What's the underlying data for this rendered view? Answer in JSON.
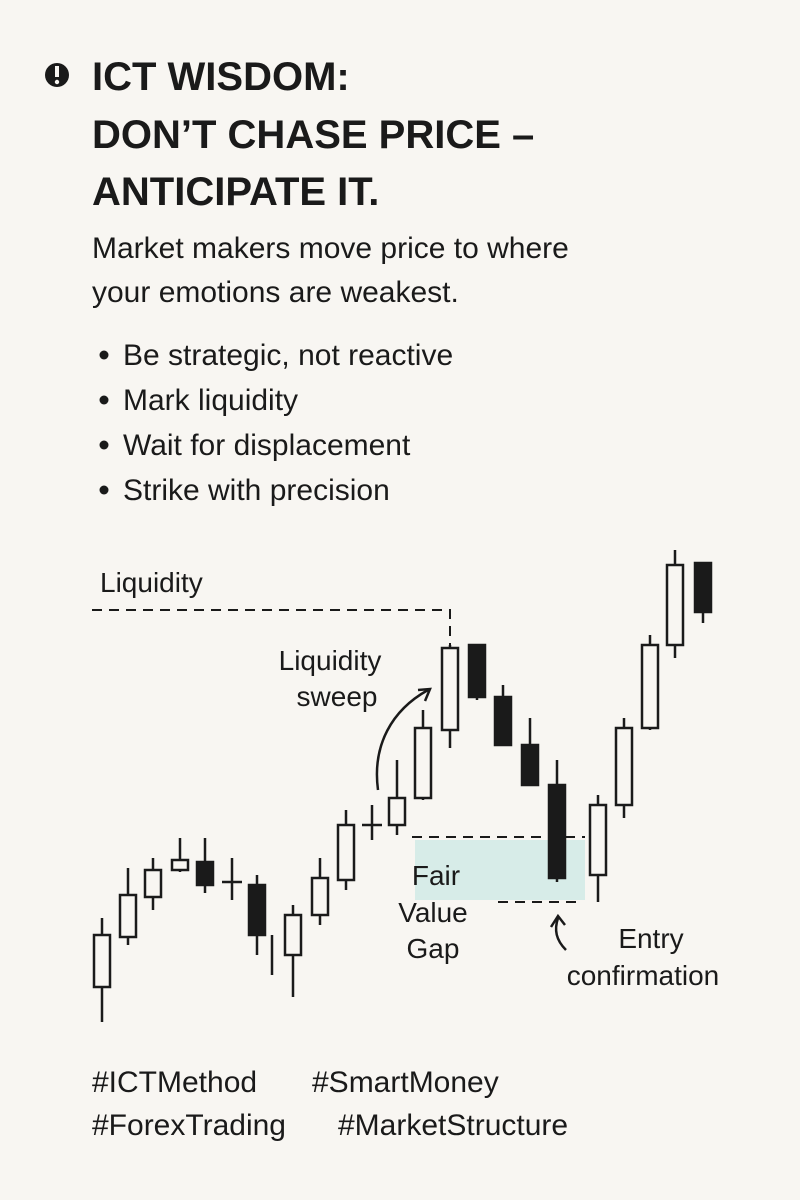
{
  "header": {
    "title": [
      "ICT WISDOM:",
      "DON’T CHASE PRICE –",
      "ANTICIPATE IT."
    ],
    "subtitle": [
      "Market makers move price to where",
      "your emotions are weakest."
    ]
  },
  "bullets": [
    "Be strategic, not reactive",
    "Mark liquidity",
    "Wait for displacement",
    "Strike with precision"
  ],
  "diagram": {
    "liquidity": "Liquidity",
    "sweep": [
      "Liquidity",
      "sweep"
    ],
    "fvg": [
      "Fair",
      "Value",
      "Gap"
    ],
    "entry": [
      "Entry",
      "confirmation"
    ]
  },
  "hashtags": [
    "#ICTMethod",
    "#SmartMoney",
    "#ForexTrading",
    "#MarketStructure"
  ]
}
